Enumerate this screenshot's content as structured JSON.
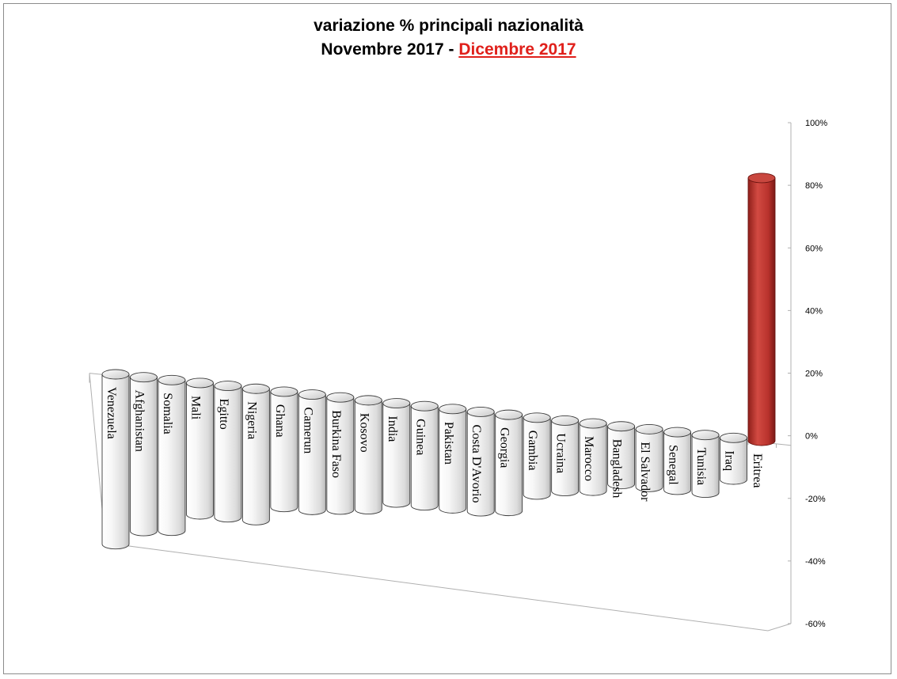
{
  "title": {
    "line1": "variazione % principali nazionalità",
    "line2_prefix": "Novembre 2017 - ",
    "line2_highlight": "Dicembre  2017"
  },
  "colors": {
    "bar_body": "#f2f2f2",
    "bar_highlight": "#b8322c",
    "axis": "#b0b0b0"
  },
  "chart_data": {
    "type": "bar",
    "style": "3d-cylinder",
    "title": "variazione % principali nazionalità Novembre 2017 - Dicembre  2017",
    "ylim": [
      -0.6,
      1.0
    ],
    "y_ticks": [
      "100%",
      "80%",
      "60%",
      "40%",
      "20%",
      "0%",
      "-20%",
      "-40%",
      "-60%"
    ],
    "categories": [
      "Venezuela",
      "Afghanistan",
      "Somalia",
      "Mali",
      "Egitto",
      "Nigeria",
      "Ghana",
      "Camerun",
      "Burkina Faso",
      "Kosovo",
      "India",
      "Guinea",
      "Pakistan",
      "Costa D'Avorio",
      "Georgia",
      "Gambia",
      "Ucraina",
      "Marocco",
      "Bangladesh",
      "El Salvador",
      "Senegal",
      "Tunisia",
      "Iraq",
      "Eritrea"
    ],
    "values": [
      -0.53,
      -0.48,
      -0.47,
      -0.41,
      -0.41,
      -0.41,
      -0.36,
      -0.36,
      -0.35,
      -0.34,
      -0.31,
      -0.31,
      -0.31,
      -0.31,
      -0.3,
      -0.24,
      -0.22,
      -0.21,
      -0.18,
      -0.18,
      -0.18,
      -0.18,
      -0.13,
      0.82
    ],
    "highlight_category": "Eritrea"
  }
}
